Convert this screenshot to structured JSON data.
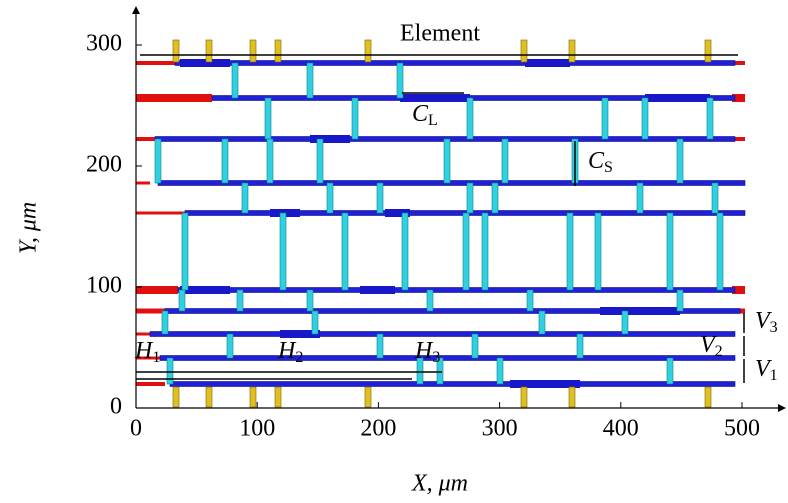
{
  "chart_data": {
    "type": "layout",
    "x_label": "X, μm",
    "y_label": "Y, μm",
    "xlim": [
      0,
      500
    ],
    "ylim": [
      0,
      300
    ],
    "xticks": [
      0,
      100,
      200,
      300,
      400,
      500
    ],
    "yticks": [
      0,
      100,
      200,
      300
    ],
    "annotations": {
      "element": "Element",
      "cl": {
        "text": "C",
        "sub": "L"
      },
      "cs": {
        "text": "C",
        "sub": "S"
      },
      "h1": {
        "text": "H",
        "sub": "1"
      },
      "h2": {
        "text": "H",
        "sub": "2"
      },
      "h3": {
        "text": "H",
        "sub": "3"
      },
      "v1": {
        "text": "V",
        "sub": "1"
      },
      "v2": {
        "text": "V",
        "sub": "2"
      },
      "v3": {
        "text": "V",
        "sub": "3"
      }
    }
  }
}
